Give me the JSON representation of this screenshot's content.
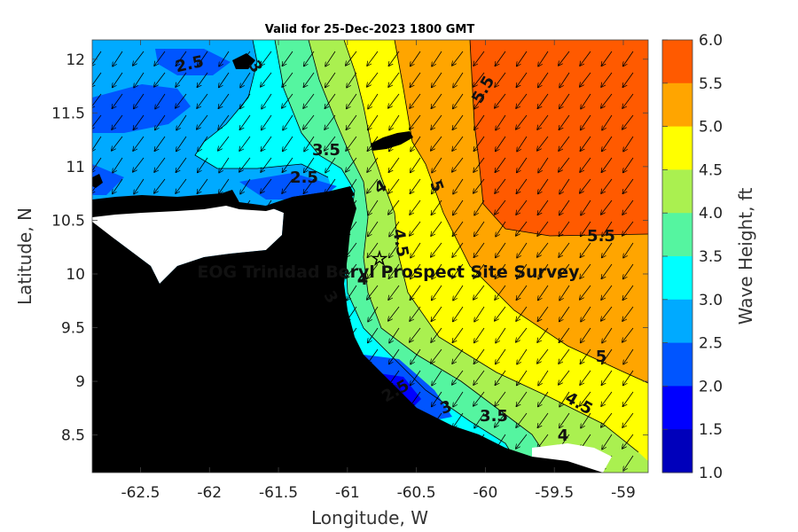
{
  "title": "Valid for 25-Dec-2023 1800 GMT",
  "xlabel": "Longitude, W",
  "ylabel": "Latitude, N",
  "colorbar_label": "Wave Height, ft",
  "x_ticks": [
    "-62.5",
    "-62",
    "-61.5",
    "-61",
    "-60.5",
    "-60",
    "-59.5",
    "-59"
  ],
  "y_ticks": [
    "12",
    "11.5",
    "11",
    "10.5",
    "10",
    "9.5",
    "9",
    "8.5"
  ],
  "colorbar_ticks": [
    "6.0",
    "5.5",
    "5.0",
    "4.5",
    "4.0",
    "3.5",
    "3.0",
    "2.5",
    "2.0",
    "1.5",
    "1.0"
  ],
  "colorbar_colors": [
    "#ff5a00",
    "#ffa500",
    "#ffff00",
    "#aaf050",
    "#55f5a0",
    "#00ffff",
    "#00aaff",
    "#0055ff",
    "#0000ff",
    "#0000bb"
  ],
  "survey_label": "EOG Trinidad Beryl Prospect Site Survey",
  "site_marker": "☆",
  "contour_labels": [
    "2.5",
    "3",
    "3.5",
    "2.5",
    "4",
    "5",
    "5.5",
    "5.5",
    "4.5",
    "4",
    "3",
    "2.5",
    "3",
    "3.5",
    "4.5",
    "5",
    "4"
  ],
  "map": {
    "lon_range": [
      -62.85,
      -58.82
    ],
    "lat_range": [
      8.15,
      12.18
    ],
    "land_color": "#000000",
    "masked_color": "#ffffff",
    "wave_direction": "toward south-west"
  }
}
